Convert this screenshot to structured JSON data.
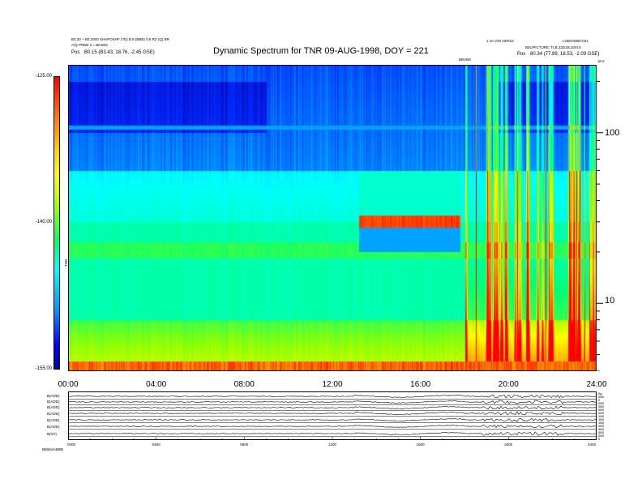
{
  "header": {
    "left_line1": "B0.30 + B0.2000 SHAPOSHF (?D) B:8 (BBB) 0:8 RZ (Q) BR",
    "left_line2": "A/Q PREB 3 = B0.B02",
    "left_pos_label": "Pos",
    "left_pos_value": "B0.15 (B3.43, 18.76, -2.45 GSE)",
    "right_line1": "1.10 V20 20/R22",
    "right_line2": "LOB/OOB0-b01",
    "right_line3": "B0L/PICTURE: TLB 23D1B.20r0.5",
    "right_pos_label": "Pos",
    "right_pos_value": "80.34 (77.89, 18.53, -2.09 GSE)",
    "marker_label": "BBVBS"
  },
  "chart_data": {
    "type": "heatmap",
    "title": "Dynamic Spectrum for TNR 09-AUG-1998, DOY = 221",
    "xlabel": "",
    "ylabel": "",
    "x_range": [
      "00:00",
      "24:00"
    ],
    "x_ticks": [
      "00:00",
      "04:00",
      "08:00",
      "12:00",
      "16:00",
      "20:00",
      "24:00"
    ],
    "y_scale": "log",
    "y_range": [
      4,
      250
    ],
    "y_unit": "kHz",
    "y_ticks": [
      {
        "value": 100,
        "label": "100"
      },
      {
        "value": 10,
        "label": "10"
      }
    ],
    "colorbar": {
      "label": "TNR",
      "range": [
        -155,
        -125
      ],
      "ticks": [
        "-125.00",
        "-140.00",
        "-155.00"
      ],
      "colors": [
        "#ff0000",
        "#ffff00",
        "#00ff66",
        "#00ffff",
        "#0000ff"
      ]
    },
    "features": [
      {
        "name": "high-frequency blue band",
        "start_hour": 0,
        "end_hour": 24,
        "low_khz": 60,
        "high_khz": 250,
        "level": -151
      },
      {
        "name": "type-III bursts",
        "start_hour": 18,
        "end_hour": 24,
        "low_khz": 4,
        "high_khz": 200,
        "level": -125
      },
      {
        "name": "enhanced band",
        "start_hour": 13.2,
        "end_hour": 17.8,
        "low_khz": 18,
        "high_khz": 35,
        "level": -128
      }
    ]
  },
  "panel": {
    "labels": [
      "B(ADD)",
      "B(ADD)",
      "B(ADD)",
      "B(ADD)",
      "B(ADD)",
      "B(ADD)",
      "B(NT)"
    ],
    "right_labels": [
      "Bp",
      "0B0",
      "0",
      "0B0",
      "0B0",
      "0B0",
      "0B0",
      "1B0",
      "1B0",
      "1B0",
      "0B0",
      "3B0",
      "0B0",
      "0B0",
      "0"
    ],
    "x_ticks": [
      "0000",
      "0400",
      "0800",
      "1200",
      "1600",
      "2000",
      "2400"
    ],
    "footer_label": "Bbbbs/ABBB"
  }
}
